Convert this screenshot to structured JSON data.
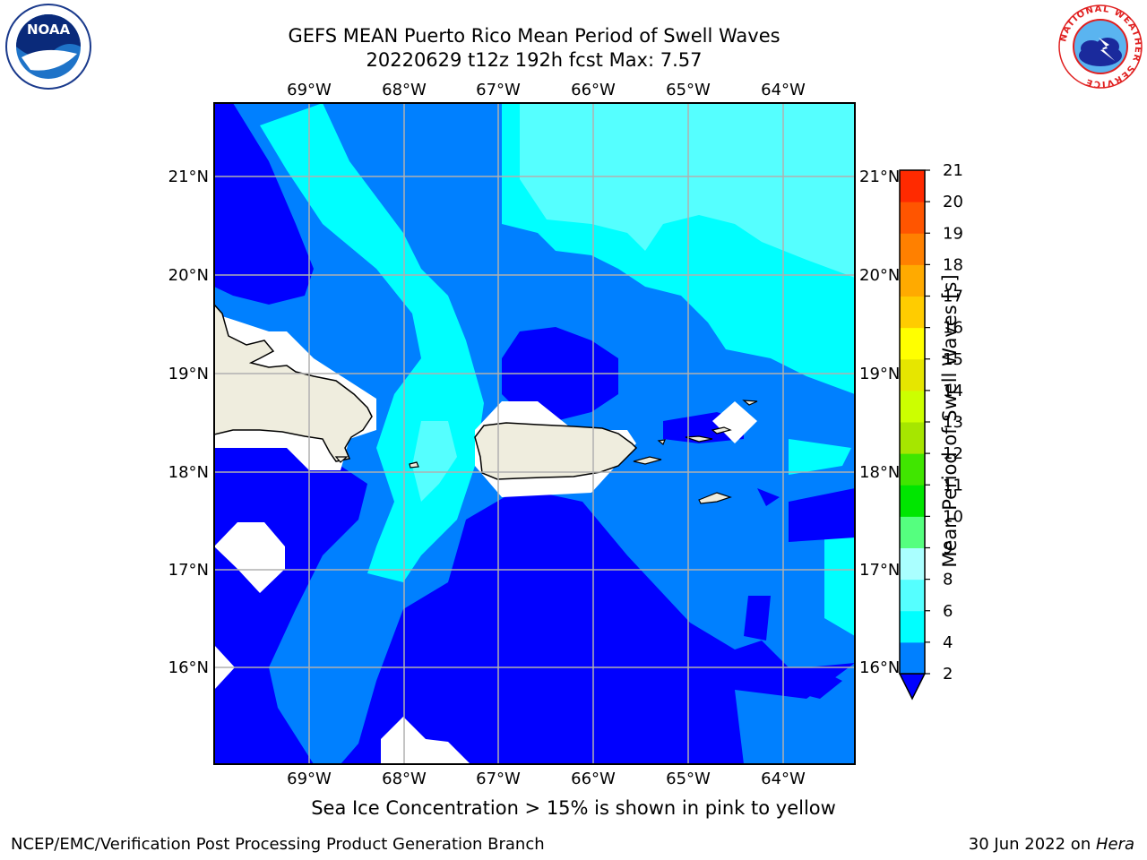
{
  "header": {
    "title_line1": "GEFS MEAN Puerto Rico Mean Period of Swell Waves",
    "title_line2": "20220629 t12z 192h fcst   Max: 7.57"
  },
  "logos": {
    "left": {
      "name": "noaa-logo",
      "text": "NOAA"
    },
    "right": {
      "name": "nws-logo",
      "ring_text": "NATIONAL WEATHER SERVICE"
    }
  },
  "map": {
    "lon_labels": [
      "69°W",
      "68°W",
      "67°W",
      "66°W",
      "65°W",
      "64°W"
    ],
    "lat_labels": [
      "21°N",
      "20°N",
      "19°N",
      "18°N",
      "17°N",
      "16°N"
    ],
    "land_color": "#efedde",
    "grid_color": "#b0b0b0"
  },
  "colorbar": {
    "label": "Mean Period of Swell Waves [s]",
    "ticks": [
      "2",
      "4",
      "6",
      "8",
      "9",
      "10",
      "11",
      "12",
      "13",
      "14",
      "15",
      "16",
      "17",
      "18",
      "19",
      "20",
      "21"
    ],
    "colors": [
      "#0000ff",
      "#0080ff",
      "#00ffff",
      "#55ffff",
      "#aaffff",
      "#55ff7f",
      "#00e600",
      "#40e600",
      "#a6e600",
      "#ccff00",
      "#e6e600",
      "#ffff00",
      "#ffcc00",
      "#ffaa00",
      "#ff8000",
      "#ff5500",
      "#ff2a00",
      "#ff0000"
    ]
  },
  "caption": "Sea Ice Concentration > 15% is shown in pink to yellow",
  "footer": {
    "left": "NCEP/EMC/Verification Post Processing Product Generation Branch",
    "right_date": "30 Jun 2022 on ",
    "right_machine": "Hera"
  }
}
